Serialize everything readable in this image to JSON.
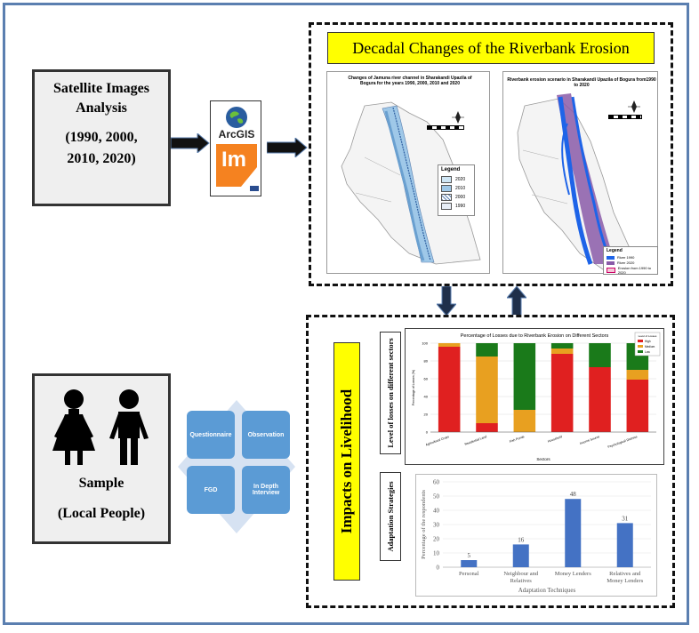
{
  "satellite": {
    "title": "Satellite Images Analysis",
    "years": "(1990, 2000, 2010, 2020)"
  },
  "software": {
    "arcgis": "ArcGIS",
    "im": "Im"
  },
  "erosion": {
    "title": "Decadal Changes of the Riverbank Erosion",
    "map1": {
      "title": "Changes of Jamuna river channel in Sharakandi Upazila of Bogura for the years 1990, 2000, 2010 and 2020",
      "legend_title": "Legend",
      "legend": [
        "2020",
        "2010",
        "2000",
        "1990"
      ]
    },
    "map2": {
      "title": "Riverbank erosion scenario in Sharakandi Upazila of Bogura from1990 to 2020",
      "legend_title": "Legend",
      "legend": [
        "River 1990",
        "River 2020",
        "Erosion from 1990 to 2020"
      ]
    }
  },
  "sample": {
    "title": "Sample",
    "subtitle": "(Local People)"
  },
  "methods": {
    "questionnaire": "Questionnaire",
    "observation": "Observation",
    "fgd": "FGD",
    "interview": "In Depth Interview"
  },
  "impacts": {
    "title": "Impacts on Livelihood",
    "losses_label": "Level of losses on different sectors",
    "adaptation_label": "Adaptation Strategies"
  },
  "colors": {
    "frame": "#5b7fb0",
    "high": "#e02020",
    "medium": "#e8a020",
    "low": "#1a7a1a",
    "bar": "#4472c4",
    "title_bg": "#ffff00",
    "tile": "#5b9bd5"
  },
  "chart_data": [
    {
      "type": "bar",
      "stacked": true,
      "title": "Percentage of Losses due to Riverbank Erosion on Different Sectors",
      "xlabel": "Sectors",
      "ylabel": "Percentage of Losses (%)",
      "ylim": [
        0,
        100
      ],
      "yticks": [
        "0",
        "20",
        "40",
        "60",
        "80",
        "100"
      ],
      "categories": [
        "Agricultural Crops",
        "Residential Land",
        "Fish Ponds",
        "Household",
        "Income Source",
        "Psychological Distress"
      ],
      "series": [
        {
          "name": "High",
          "values": [
            96,
            10,
            0,
            88,
            73,
            59
          ]
        },
        {
          "name": "Medium",
          "values": [
            4,
            75,
            25,
            6,
            0,
            11
          ]
        },
        {
          "name": "Low",
          "values": [
            0,
            15,
            75,
            6,
            27,
            30
          ]
        }
      ],
      "legend_title": "Level of Losses",
      "legend_position": "top-right"
    },
    {
      "type": "bar",
      "xlabel": "Adaptation Techniques",
      "ylabel": "Percentage of the respondents",
      "ylim": [
        0,
        60
      ],
      "yticks": [
        "0",
        "10",
        "20",
        "30",
        "40",
        "50",
        "60"
      ],
      "categories": [
        "Personal",
        "Neighbour and Relatives",
        "Money Lenders",
        "Relatives and Money Lenders"
      ],
      "values": [
        5,
        16,
        48,
        31
      ],
      "value_labels": [
        "5",
        "16",
        "48",
        "31"
      ]
    }
  ]
}
